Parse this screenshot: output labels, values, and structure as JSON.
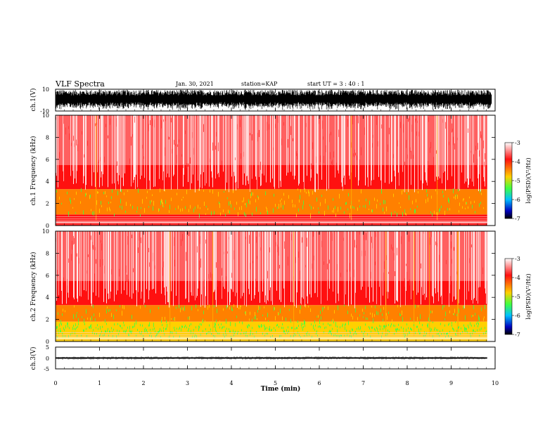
{
  "header": {
    "title": "VLF Spectra",
    "date": "Jan. 30, 2021",
    "station": "station=KAP",
    "start": "start UT = 3 : 40 : 1"
  },
  "colors": {
    "colormap": [
      "#ffffff",
      "#ff1010",
      "#ffd000",
      "#40ff40",
      "#00c0ff",
      "#0000c0",
      "#000000"
    ]
  },
  "chart_data": [
    {
      "type": "line",
      "name": "ch1-waveform",
      "ylabel": "ch.1(V)",
      "ylim": [
        -10,
        10
      ],
      "y_ticks": [
        "10",
        "-10"
      ],
      "xlim": [
        0,
        10
      ],
      "description_values": {
        "envelope_high": 9.5,
        "envelope_low": -9.5
      }
    },
    {
      "type": "heatmap",
      "name": "ch1-spectrogram",
      "ylabel": "ch.1 Frequency (kHz)",
      "ylim": [
        0,
        10
      ],
      "y_ticks": [
        "0",
        "2",
        "4",
        "6",
        "8",
        "10"
      ],
      "xlim": [
        0,
        9.82
      ],
      "colorbar": {
        "label": "log(PSD)(V²/Hz)",
        "range": [
          -7,
          -3
        ],
        "ticks": [
          "-3",
          "-4",
          "-5",
          "-6",
          "-7"
        ]
      },
      "bands": [
        {
          "from": 0,
          "to": 1.0,
          "level": -4.0
        },
        {
          "from": 1.0,
          "to": 3.3,
          "level": -4.4
        },
        {
          "from": 3.3,
          "to": 5.5,
          "level": -3.9
        },
        {
          "from": 5.5,
          "to": 10,
          "level": -3.5
        }
      ]
    },
    {
      "type": "heatmap",
      "name": "ch2-spectrogram",
      "ylabel": "ch.2 Frequency (kHz)",
      "ylim": [
        0,
        10
      ],
      "y_ticks": [
        "0",
        "2",
        "4",
        "6",
        "8",
        "10"
      ],
      "xlim": [
        0,
        9.82
      ],
      "colorbar": {
        "label": "log(PSD)(V²/Hz)",
        "range": [
          -7,
          -3
        ],
        "ticks": [
          "-3",
          "-4",
          "-5",
          "-6",
          "-7"
        ]
      },
      "bands": [
        {
          "from": 0,
          "to": 1.8,
          "level": -4.9
        },
        {
          "from": 1.8,
          "to": 3.3,
          "level": -4.5
        },
        {
          "from": 3.3,
          "to": 5.5,
          "level": -3.9
        },
        {
          "from": 5.5,
          "to": 10,
          "level": -3.5
        }
      ]
    },
    {
      "type": "line",
      "name": "ch3-waveform",
      "ylabel": "ch.3(V)",
      "ylim": [
        -5,
        5
      ],
      "y_ticks": [
        "5",
        "0",
        "-5"
      ],
      "xlim": [
        0,
        9.82
      ],
      "description_values": {
        "envelope_high": 0.3,
        "envelope_low": -0.3
      }
    }
  ],
  "x_axis": {
    "label": "Time (min)",
    "ticks": [
      "0",
      "1",
      "2",
      "3",
      "4",
      "5",
      "6",
      "7",
      "8",
      "9",
      "10"
    ],
    "range": [
      0,
      10
    ]
  }
}
